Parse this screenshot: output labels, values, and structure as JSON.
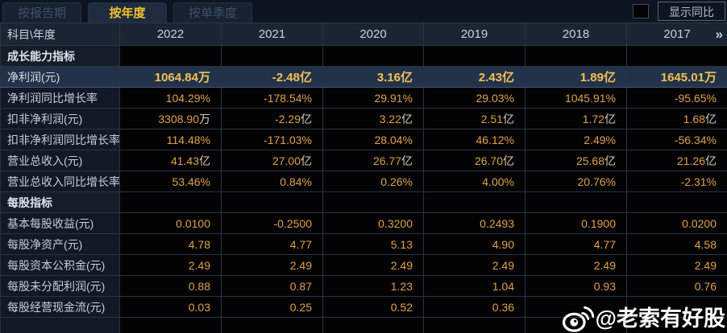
{
  "tabs": [
    {
      "id": "report-period",
      "label": "按报告期",
      "active": false
    },
    {
      "id": "annual",
      "label": "按年度",
      "active": true
    },
    {
      "id": "single-quarter",
      "label": "按单季度",
      "active": false
    }
  ],
  "controls": {
    "show_yoy_label": "显示同比",
    "show_yoy_checked": false
  },
  "table": {
    "corner_header": "科目\\年度",
    "year_columns": [
      "2022",
      "2021",
      "2020",
      "2019",
      "2018",
      "2017"
    ],
    "more_columns_icon": "»",
    "rows": [
      {
        "label": "成长能力指标",
        "type": "section",
        "highlight": false,
        "values": [
          "",
          "",
          "",
          "",
          "",
          ""
        ]
      },
      {
        "label": "净利润(元)",
        "type": "data",
        "highlight": true,
        "values": [
          "1064.84万",
          "-2.48亿",
          "3.16亿",
          "2.43亿",
          "1.89亿",
          "1645.01万"
        ]
      },
      {
        "label": "净利润同比增长率",
        "type": "data",
        "highlight": false,
        "values": [
          "104.29%",
          "-178.54%",
          "29.91%",
          "29.03%",
          "1045.91%",
          "-95.65%"
        ]
      },
      {
        "label": "扣非净利润(元)",
        "type": "data",
        "highlight": false,
        "values": [
          "3308.90万",
          "-2.29亿",
          "3.22亿",
          "2.51亿",
          "1.72亿",
          "1.68亿"
        ]
      },
      {
        "label": "扣非净利润同比增长率",
        "type": "data",
        "highlight": false,
        "values": [
          "114.48%",
          "-171.03%",
          "28.04%",
          "46.12%",
          "2.49%",
          "-56.34%"
        ]
      },
      {
        "label": "营业总收入(元)",
        "type": "data",
        "highlight": false,
        "values": [
          "41.43亿",
          "27.00亿",
          "26.77亿",
          "26.70亿",
          "25.68亿",
          "21.26亿"
        ]
      },
      {
        "label": "营业总收入同比增长率",
        "type": "data",
        "highlight": false,
        "values": [
          "53.46%",
          "0.84%",
          "0.26%",
          "4.00%",
          "20.76%",
          "-2.31%"
        ]
      },
      {
        "label": "每股指标",
        "type": "section",
        "highlight": false,
        "values": [
          "",
          "",
          "",
          "",
          "",
          ""
        ]
      },
      {
        "label": "基本每股收益(元)",
        "type": "data",
        "highlight": false,
        "values": [
          "0.0100",
          "-0.2500",
          "0.3200",
          "0.2493",
          "0.1900",
          "0.0200"
        ]
      },
      {
        "label": "每股净资产(元)",
        "type": "data",
        "highlight": false,
        "values": [
          "4.78",
          "4.77",
          "5.13",
          "4.90",
          "4.77",
          "4.58"
        ]
      },
      {
        "label": "每股资本公积金(元)",
        "type": "data",
        "highlight": false,
        "values": [
          "2.49",
          "2.49",
          "2.49",
          "2.49",
          "2.49",
          "2.49"
        ]
      },
      {
        "label": "每股未分配利润(元)",
        "type": "data",
        "highlight": false,
        "values": [
          "0.88",
          "0.87",
          "1.23",
          "1.04",
          "0.93",
          "0.76"
        ]
      },
      {
        "label": "每股经营现金流(元)",
        "type": "data",
        "highlight": false,
        "values": [
          "0.03",
          "0.25",
          "0.52",
          "0.36",
          "",
          ""
        ]
      },
      {
        "label": "",
        "type": "data",
        "highlight": false,
        "values": [
          "",
          "",
          "",
          "",
          "",
          ""
        ]
      }
    ]
  },
  "watermark": {
    "icon": "weibo-icon",
    "text": "@老索有好股"
  },
  "colors": {
    "value_gold": "#e0a14b",
    "highlight_gold": "#f4c158",
    "active_tab_text": "#f3c42e",
    "header_bg": "#1a2433",
    "highlight_row_bg": "#223249",
    "label_cell_bg": "#121924",
    "value_cell_bg": "#030303"
  }
}
